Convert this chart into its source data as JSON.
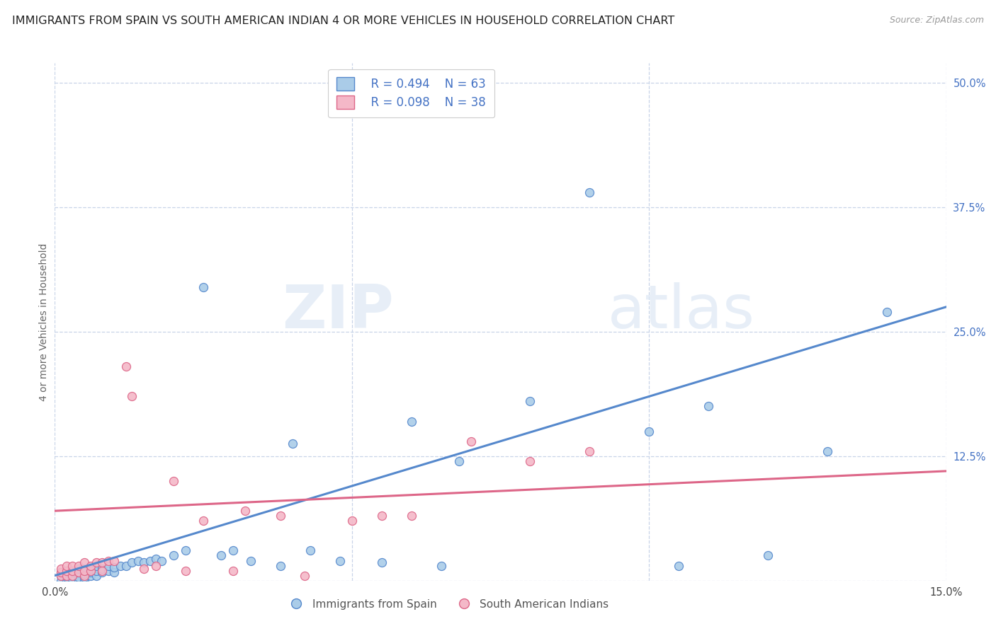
{
  "title": "IMMIGRANTS FROM SPAIN VS SOUTH AMERICAN INDIAN 4 OR MORE VEHICLES IN HOUSEHOLD CORRELATION CHART",
  "source": "Source: ZipAtlas.com",
  "ylabel": "4 or more Vehicles in Household",
  "xlim": [
    0.0,
    0.15
  ],
  "ylim": [
    0.0,
    0.52
  ],
  "xticks": [
    0.0,
    0.05,
    0.1,
    0.15
  ],
  "xticklabels": [
    "0.0%",
    "",
    "",
    "15.0%"
  ],
  "yticks_right": [
    0.0,
    0.125,
    0.25,
    0.375,
    0.5
  ],
  "ytick_labels_right": [
    "",
    "12.5%",
    "25.0%",
    "37.5%",
    "50.0%"
  ],
  "legend_labels": [
    "Immigrants from Spain",
    "South American Indians"
  ],
  "legend_r": [
    "R = 0.494",
    "N = 63"
  ],
  "legend_n": [
    "R = 0.098",
    "N = 38"
  ],
  "color_blue": "#aacce8",
  "color_pink": "#f4b8c8",
  "color_blue_line": "#5588cc",
  "color_pink_line": "#dd6688",
  "color_text": "#4472c4",
  "watermark_zip": "ZIP",
  "watermark_atlas": "atlas",
  "bg_color": "#ffffff",
  "grid_color": "#c8d4e8",
  "title_fontsize": 11.5,
  "axis_label_fontsize": 10,
  "tick_fontsize": 10.5,
  "blue_line_x": [
    0.0,
    0.15
  ],
  "blue_line_y": [
    0.005,
    0.275
  ],
  "pink_line_x": [
    0.0,
    0.15
  ],
  "pink_line_y": [
    0.07,
    0.11
  ],
  "blue_x": [
    0.001,
    0.001,
    0.001,
    0.002,
    0.002,
    0.002,
    0.002,
    0.002,
    0.003,
    0.003,
    0.003,
    0.003,
    0.004,
    0.004,
    0.004,
    0.004,
    0.005,
    0.005,
    0.005,
    0.005,
    0.005,
    0.006,
    0.006,
    0.006,
    0.007,
    0.007,
    0.007,
    0.008,
    0.008,
    0.009,
    0.009,
    0.01,
    0.01,
    0.011,
    0.012,
    0.013,
    0.014,
    0.015,
    0.016,
    0.017,
    0.018,
    0.02,
    0.022,
    0.025,
    0.028,
    0.03,
    0.033,
    0.038,
    0.04,
    0.043,
    0.048,
    0.055,
    0.06,
    0.065,
    0.068,
    0.08,
    0.09,
    0.1,
    0.105,
    0.11,
    0.12,
    0.13,
    0.14
  ],
  "blue_y": [
    0.0,
    0.005,
    0.008,
    0.0,
    0.003,
    0.005,
    0.008,
    0.01,
    0.002,
    0.005,
    0.008,
    0.01,
    0.0,
    0.003,
    0.008,
    0.012,
    0.0,
    0.003,
    0.007,
    0.01,
    0.012,
    0.005,
    0.008,
    0.012,
    0.005,
    0.01,
    0.015,
    0.008,
    0.012,
    0.01,
    0.015,
    0.008,
    0.013,
    0.015,
    0.015,
    0.018,
    0.02,
    0.018,
    0.02,
    0.022,
    0.02,
    0.025,
    0.03,
    0.295,
    0.025,
    0.03,
    0.02,
    0.015,
    0.138,
    0.03,
    0.02,
    0.018,
    0.16,
    0.015,
    0.12,
    0.18,
    0.39,
    0.15,
    0.015,
    0.175,
    0.025,
    0.13,
    0.27
  ],
  "pink_x": [
    0.001,
    0.001,
    0.001,
    0.002,
    0.002,
    0.002,
    0.003,
    0.003,
    0.003,
    0.004,
    0.004,
    0.005,
    0.005,
    0.005,
    0.006,
    0.006,
    0.007,
    0.008,
    0.008,
    0.009,
    0.01,
    0.012,
    0.013,
    0.015,
    0.017,
    0.02,
    0.022,
    0.025,
    0.03,
    0.032,
    0.038,
    0.042,
    0.05,
    0.055,
    0.06,
    0.07,
    0.08,
    0.09
  ],
  "pink_y": [
    0.005,
    0.008,
    0.012,
    0.005,
    0.01,
    0.015,
    0.005,
    0.01,
    0.015,
    0.008,
    0.015,
    0.005,
    0.01,
    0.018,
    0.01,
    0.015,
    0.018,
    0.01,
    0.018,
    0.02,
    0.02,
    0.215,
    0.185,
    0.012,
    0.015,
    0.1,
    0.01,
    0.06,
    0.01,
    0.07,
    0.065,
    0.005,
    0.06,
    0.065,
    0.065,
    0.14,
    0.12,
    0.13
  ]
}
